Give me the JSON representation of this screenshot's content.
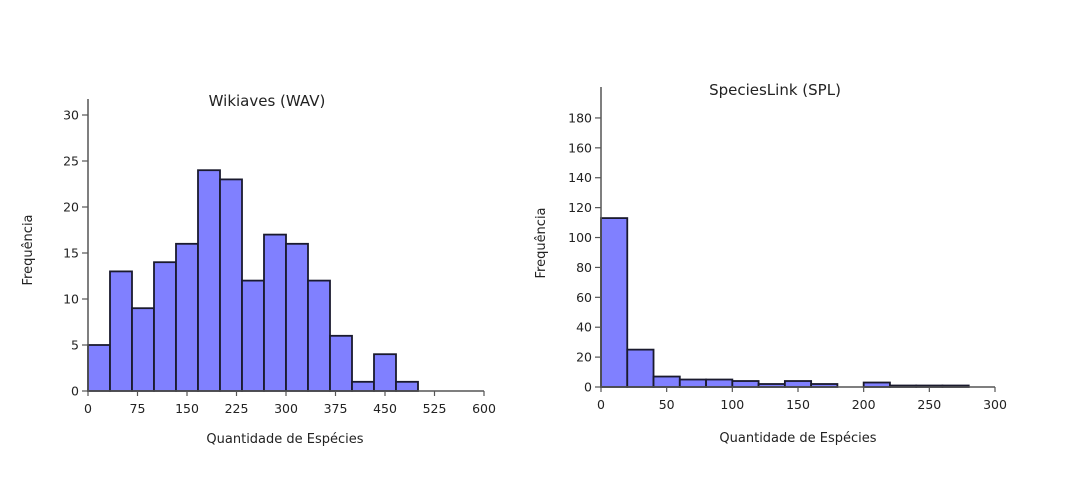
{
  "chart_data": [
    {
      "type": "bar",
      "title": "Wikiaves (WAV)",
      "xlabel": "Quantidade de Espécies",
      "ylabel": "Frequência",
      "x_ticks": [
        "0",
        "75",
        "150",
        "225",
        "300",
        "375",
        "450",
        "525",
        "600"
      ],
      "y_ticks": [
        "0",
        "5",
        "10",
        "15",
        "20",
        "25",
        "30"
      ],
      "xlim": [
        0,
        600
      ],
      "ylim": [
        0,
        30
      ],
      "bin_width": 33.33,
      "bin_starts": [
        0,
        33.33,
        66.67,
        100,
        133.33,
        166.67,
        200,
        233.33,
        266.67,
        300,
        333.33,
        366.67,
        400,
        433.33,
        466.67
      ],
      "values": [
        5,
        13,
        9,
        14,
        16,
        24,
        23,
        12,
        17,
        16,
        12,
        6,
        1,
        4,
        1
      ],
      "bar_color": "#8080ff",
      "edge_color": "#1a1a2e",
      "grid": false
    },
    {
      "type": "bar",
      "title": "SpeciesLink (SPL)",
      "xlabel": "Quantidade de Espécies",
      "ylabel": "Frequência",
      "x_ticks": [
        "0",
        "50",
        "100",
        "150",
        "200",
        "250",
        "300"
      ],
      "y_ticks": [
        "0",
        "20",
        "40",
        "60",
        "80",
        "100",
        "120",
        "140",
        "160",
        "180"
      ],
      "xlim": [
        0,
        300
      ],
      "ylim": [
        0,
        190
      ],
      "bin_width": 20,
      "bin_starts": [
        0,
        20,
        40,
        60,
        80,
        100,
        120,
        140,
        160,
        180,
        200,
        220,
        240,
        260
      ],
      "values": [
        113,
        25,
        7,
        5,
        5,
        4,
        2,
        4,
        2,
        0,
        3,
        1,
        1,
        1
      ],
      "bar_color": "#8080ff",
      "edge_color": "#1a1a2e",
      "grid": false
    }
  ]
}
